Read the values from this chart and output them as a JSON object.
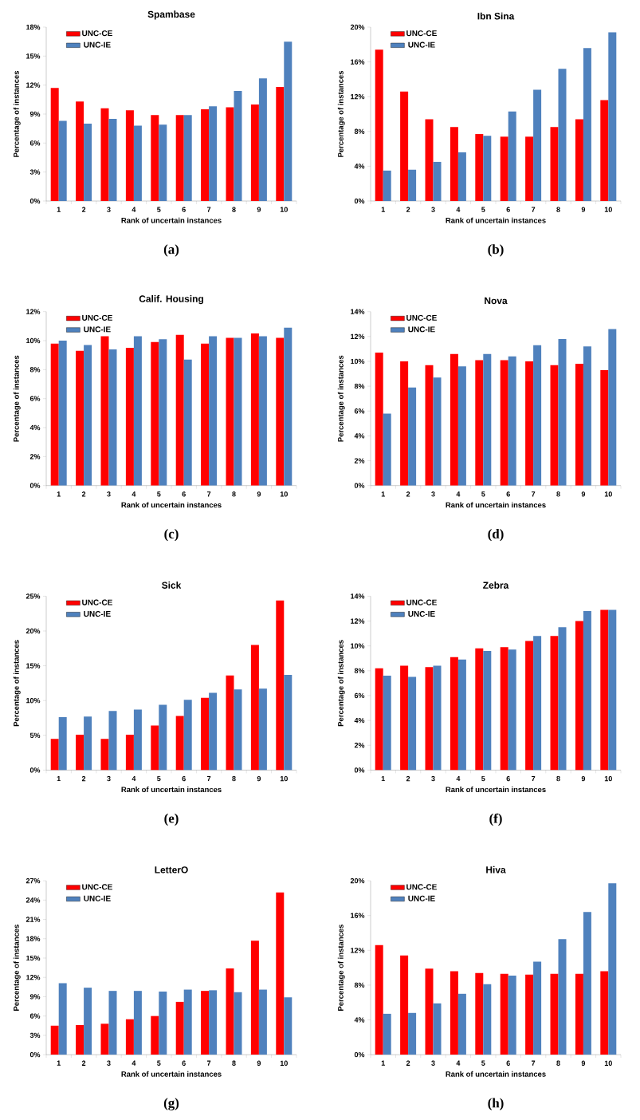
{
  "chart_data": [
    {
      "type": "bar",
      "title": "Spambase",
      "xlabel": "Rank of uncertain instances",
      "ylabel": "Percentage of instances",
      "categories": [
        "1",
        "2",
        "3",
        "4",
        "5",
        "6",
        "7",
        "8",
        "9",
        "10"
      ],
      "ylim": [
        0,
        18
      ],
      "yticks": [
        {
          "value": 0,
          "label": "0%"
        },
        {
          "value": 3,
          "label": "3%"
        },
        {
          "value": 6,
          "label": "6%"
        },
        {
          "value": 9,
          "label": "9%"
        },
        {
          "value": 12,
          "label": "12%"
        },
        {
          "value": 15,
          "label": "15%"
        },
        {
          "value": 18,
          "label": "18%"
        }
      ],
      "legend": "top left",
      "annotations": [
        "(a)"
      ],
      "series": [
        {
          "name": "UNC-CE",
          "color": "#ff0000",
          "values": [
            11.7,
            10.3,
            9.6,
            9.4,
            8.9,
            8.9,
            9.5,
            9.7,
            10.0,
            11.8
          ]
        },
        {
          "name": "UNC-IE",
          "color": "#4f81bd",
          "values": [
            8.3,
            8.0,
            8.5,
            7.8,
            7.9,
            8.9,
            9.8,
            11.4,
            12.7,
            16.5
          ]
        }
      ]
    },
    {
      "type": "bar",
      "title": "Ibn Sina",
      "xlabel": "Rank of uncertain instances",
      "ylabel": "Percentage of instances",
      "categories": [
        "1",
        "2",
        "3",
        "4",
        "5",
        "6",
        "7",
        "8",
        "9",
        "10"
      ],
      "ylim": [
        0,
        20
      ],
      "yticks": [
        {
          "value": 0,
          "label": "0%"
        },
        {
          "value": 4,
          "label": "4%"
        },
        {
          "value": 8,
          "label": "8%"
        },
        {
          "value": 12,
          "label": "12%"
        },
        {
          "value": 16,
          "label": "16%"
        },
        {
          "value": 20,
          "label": "20%"
        }
      ],
      "legend": "top left",
      "annotations": [
        "(b)"
      ],
      "series": [
        {
          "name": "UNC-CE",
          "color": "#ff0000",
          "values": [
            17.4,
            12.6,
            9.4,
            8.5,
            7.7,
            7.4,
            7.4,
            8.5,
            9.4,
            11.6
          ]
        },
        {
          "name": "UNC-IE",
          "color": "#4f81bd",
          "values": [
            3.5,
            3.6,
            4.5,
            5.6,
            7.5,
            10.3,
            12.8,
            15.2,
            17.6,
            19.4
          ]
        }
      ]
    },
    {
      "type": "bar",
      "title": "Calif. Housing",
      "xlabel": "Rank of uncertain instances",
      "ylabel": "Percentage of instances",
      "categories": [
        "1",
        "2",
        "3",
        "4",
        "5",
        "6",
        "7",
        "8",
        "9",
        "10"
      ],
      "ylim": [
        0,
        12
      ],
      "yticks": [
        {
          "value": 0,
          "label": "0%"
        },
        {
          "value": 2,
          "label": "2%"
        },
        {
          "value": 4,
          "label": "4%"
        },
        {
          "value": 6,
          "label": "6%"
        },
        {
          "value": 8,
          "label": "8%"
        },
        {
          "value": 10,
          "label": "10%"
        },
        {
          "value": 12,
          "label": "12%"
        }
      ],
      "legend": "top left",
      "annotations": [
        "(c)"
      ],
      "series": [
        {
          "name": "UNC-CE",
          "color": "#ff0000",
          "values": [
            9.8,
            9.3,
            10.3,
            9.5,
            9.9,
            10.4,
            9.8,
            10.2,
            10.5,
            10.2
          ]
        },
        {
          "name": "UNC-IE",
          "color": "#4f81bd",
          "values": [
            10.0,
            9.7,
            9.4,
            10.3,
            10.1,
            8.7,
            10.3,
            10.2,
            10.3,
            10.9
          ]
        }
      ]
    },
    {
      "type": "bar",
      "title": "Nova",
      "xlabel": "Rank of uncertain instances",
      "ylabel": "Percentage of instances",
      "categories": [
        "1",
        "2",
        "3",
        "4",
        "5",
        "6",
        "7",
        "8",
        "9",
        "10"
      ],
      "ylim": [
        0,
        14
      ],
      "yticks": [
        {
          "value": 0,
          "label": "0%"
        },
        {
          "value": 2,
          "label": "2%"
        },
        {
          "value": 4,
          "label": "4%"
        },
        {
          "value": 6,
          "label": "6%"
        },
        {
          "value": 8,
          "label": "8%"
        },
        {
          "value": 10,
          "label": "10%"
        },
        {
          "value": 12,
          "label": "12%"
        },
        {
          "value": 14,
          "label": "14%"
        }
      ],
      "legend": "top left",
      "annotations": [
        "(d)"
      ],
      "series": [
        {
          "name": "UNC-CE",
          "color": "#ff0000",
          "values": [
            10.7,
            10.0,
            9.7,
            10.6,
            10.1,
            10.1,
            10.0,
            9.7,
            9.8,
            9.3
          ]
        },
        {
          "name": "UNC-IE",
          "color": "#4f81bd",
          "values": [
            5.8,
            7.9,
            8.7,
            9.6,
            10.6,
            10.4,
            11.3,
            11.8,
            11.2,
            12.6
          ]
        }
      ]
    },
    {
      "type": "bar",
      "title": "Sick",
      "xlabel": "Rank of uncertain instances",
      "ylabel": "Percentage of instances",
      "categories": [
        "1",
        "2",
        "3",
        "4",
        "5",
        "6",
        "7",
        "8",
        "9",
        "10"
      ],
      "ylim": [
        0,
        25
      ],
      "yticks": [
        {
          "value": 0,
          "label": "0%"
        },
        {
          "value": 5,
          "label": "5%"
        },
        {
          "value": 10,
          "label": "10%"
        },
        {
          "value": 15,
          "label": "15%"
        },
        {
          "value": 20,
          "label": "20%"
        },
        {
          "value": 25,
          "label": "25%"
        }
      ],
      "legend": "top left",
      "annotations": [
        "(e)"
      ],
      "series": [
        {
          "name": "UNC-CE",
          "color": "#ff0000",
          "values": [
            4.5,
            5.1,
            4.5,
            5.1,
            6.4,
            7.8,
            10.4,
            13.6,
            18.0,
            24.4
          ]
        },
        {
          "name": "UNC-IE",
          "color": "#4f81bd",
          "values": [
            7.6,
            7.7,
            8.5,
            8.7,
            9.4,
            10.1,
            11.1,
            11.6,
            11.7,
            13.7
          ]
        }
      ]
    },
    {
      "type": "bar",
      "title": "Zebra",
      "xlabel": "Rank of uncertain instances",
      "ylabel": "Percentage of instances",
      "categories": [
        "1",
        "2",
        "3",
        "4",
        "5",
        "6",
        "7",
        "8",
        "9",
        "10"
      ],
      "ylim": [
        0,
        14
      ],
      "yticks": [
        {
          "value": 0,
          "label": "0%"
        },
        {
          "value": 2,
          "label": "2%"
        },
        {
          "value": 4,
          "label": "4%"
        },
        {
          "value": 6,
          "label": "6%"
        },
        {
          "value": 8,
          "label": "8%"
        },
        {
          "value": 10,
          "label": "10%"
        },
        {
          "value": 12,
          "label": "12%"
        },
        {
          "value": 14,
          "label": "14%"
        }
      ],
      "legend": "top left",
      "annotations": [
        "(f)"
      ],
      "series": [
        {
          "name": "UNC-CE",
          "color": "#ff0000",
          "values": [
            8.2,
            8.4,
            8.3,
            9.1,
            9.8,
            9.9,
            10.4,
            10.8,
            12.0,
            12.9
          ]
        },
        {
          "name": "UNC-IE",
          "color": "#4f81bd",
          "values": [
            7.6,
            7.5,
            8.4,
            8.9,
            9.6,
            9.7,
            10.8,
            11.5,
            12.8,
            12.9
          ]
        }
      ]
    },
    {
      "type": "bar",
      "title": "LetterO",
      "xlabel": "Rank of uncertain instances",
      "ylabel": "Percentage of instances",
      "categories": [
        "1",
        "2",
        "3",
        "4",
        "5",
        "6",
        "7",
        "8",
        "9",
        "10"
      ],
      "ylim": [
        0,
        27
      ],
      "yticks": [
        {
          "value": 0,
          "label": "0%"
        },
        {
          "value": 3,
          "label": "3%"
        },
        {
          "value": 6,
          "label": "6%"
        },
        {
          "value": 9,
          "label": "9%"
        },
        {
          "value": 12,
          "label": "12%"
        },
        {
          "value": 15,
          "label": "15%"
        },
        {
          "value": 18,
          "label": "18%"
        },
        {
          "value": 21,
          "label": "21%"
        },
        {
          "value": 24,
          "label": "24%"
        },
        {
          "value": 27,
          "label": "27%"
        }
      ],
      "legend": "top left",
      "annotations": [
        "(g)"
      ],
      "series": [
        {
          "name": "UNC-CE",
          "color": "#ff0000",
          "values": [
            4.5,
            4.6,
            4.8,
            5.5,
            6.0,
            8.2,
            9.9,
            13.4,
            17.7,
            25.2
          ]
        },
        {
          "name": "UNC-IE",
          "color": "#4f81bd",
          "values": [
            11.1,
            10.4,
            9.9,
            9.9,
            9.8,
            10.1,
            10.0,
            9.7,
            10.1,
            8.9
          ]
        }
      ]
    },
    {
      "type": "bar",
      "title": "Hiva",
      "xlabel": "Rank of uncertain instances",
      "ylabel": "Percentage of instances",
      "categories": [
        "1",
        "2",
        "3",
        "4",
        "5",
        "6",
        "7",
        "8",
        "9",
        "10"
      ],
      "ylim": [
        0,
        20
      ],
      "yticks": [
        {
          "value": 0,
          "label": "0%"
        },
        {
          "value": 4,
          "label": "4%"
        },
        {
          "value": 8,
          "label": "8%"
        },
        {
          "value": 12,
          "label": "12%"
        },
        {
          "value": 16,
          "label": "16%"
        },
        {
          "value": 20,
          "label": "20%"
        }
      ],
      "legend": "top left",
      "annotations": [
        "(h)"
      ],
      "series": [
        {
          "name": "UNC-CE",
          "color": "#ff0000",
          "values": [
            12.6,
            11.4,
            9.9,
            9.6,
            9.4,
            9.3,
            9.2,
            9.3,
            9.3,
            9.6
          ]
        },
        {
          "name": "UNC-IE",
          "color": "#4f81bd",
          "values": [
            4.7,
            4.8,
            5.9,
            7.0,
            8.1,
            9.1,
            10.7,
            13.3,
            16.4,
            19.7
          ]
        }
      ]
    }
  ]
}
